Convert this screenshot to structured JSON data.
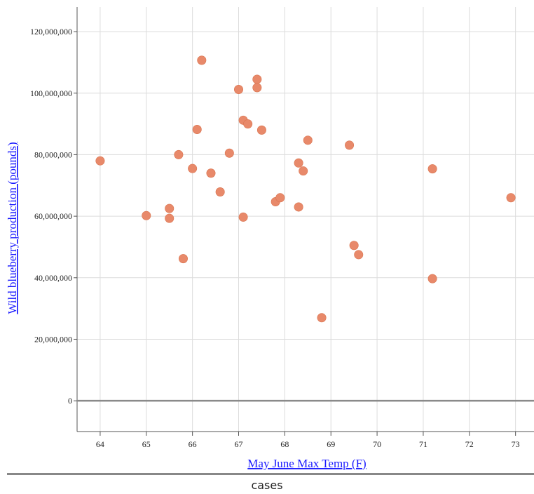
{
  "chart_data": {
    "type": "scatter",
    "xlabel": "May June Max Temp (F)",
    "ylabel": "Wild blueberry production (pounds)",
    "xlim": [
      63.5,
      73.4
    ],
    "ylim": [
      -10000000,
      128000000
    ],
    "x_ticks": [
      64,
      65,
      66,
      67,
      68,
      69,
      70,
      71,
      72,
      73
    ],
    "y_ticks": [
      0,
      20000000,
      40000000,
      60000000,
      80000000,
      100000000,
      120000000
    ],
    "y_tick_labels": [
      "0",
      "20,000,000",
      "40,000,000",
      "60,000,000",
      "80,000,000",
      "100,000,000",
      "120,000,000"
    ],
    "grid": true,
    "point_color": "#e8896a",
    "points": [
      {
        "x": 64.0,
        "y": 78000000
      },
      {
        "x": 65.0,
        "y": 60200000
      },
      {
        "x": 65.5,
        "y": 62500000
      },
      {
        "x": 65.5,
        "y": 59300000
      },
      {
        "x": 65.7,
        "y": 80000000
      },
      {
        "x": 65.8,
        "y": 46200000
      },
      {
        "x": 66.0,
        "y": 75500000
      },
      {
        "x": 66.1,
        "y": 88200000
      },
      {
        "x": 66.2,
        "y": 110700000
      },
      {
        "x": 66.4,
        "y": 74000000
      },
      {
        "x": 66.6,
        "y": 67900000
      },
      {
        "x": 66.8,
        "y": 80500000
      },
      {
        "x": 67.0,
        "y": 101200000
      },
      {
        "x": 67.1,
        "y": 91200000
      },
      {
        "x": 67.1,
        "y": 59700000
      },
      {
        "x": 67.2,
        "y": 90000000
      },
      {
        "x": 67.4,
        "y": 104500000
      },
      {
        "x": 67.4,
        "y": 101800000
      },
      {
        "x": 67.5,
        "y": 88000000
      },
      {
        "x": 67.8,
        "y": 64700000
      },
      {
        "x": 67.9,
        "y": 66000000
      },
      {
        "x": 68.3,
        "y": 77300000
      },
      {
        "x": 68.3,
        "y": 63000000
      },
      {
        "x": 68.4,
        "y": 74700000
      },
      {
        "x": 68.5,
        "y": 84700000
      },
      {
        "x": 68.8,
        "y": 27000000
      },
      {
        "x": 69.4,
        "y": 83100000
      },
      {
        "x": 69.5,
        "y": 50500000
      },
      {
        "x": 69.6,
        "y": 47500000
      },
      {
        "x": 71.2,
        "y": 75400000
      },
      {
        "x": 71.2,
        "y": 39700000
      },
      {
        "x": 72.9,
        "y": 66000000
      }
    ]
  },
  "footer": {
    "label": "cases"
  }
}
